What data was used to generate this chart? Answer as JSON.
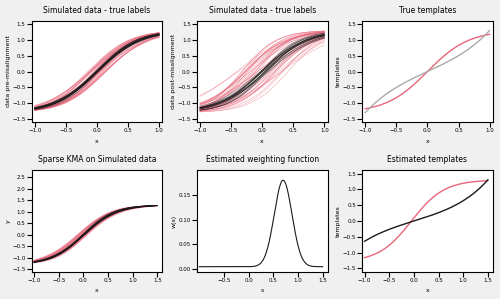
{
  "fig_width": 5.0,
  "fig_height": 2.99,
  "dpi": 100,
  "background_color": "#f0f0f0",
  "titles": [
    "Simulated data - true labels",
    "Simulated data - true labels",
    "True templates",
    "Sparse KMA on Simulated data",
    "Estimated weighting function",
    "Estimated templates"
  ],
  "xlabels": [
    "x",
    "x",
    "x",
    "x",
    "s",
    "x"
  ],
  "ylabels": [
    "data pre-misalignment",
    "data post-misalignment",
    "templates",
    "y",
    "w(s)",
    "templates"
  ],
  "color_pink": "#e8657a",
  "color_black": "#1a1a1a",
  "color_red": "#c0392b",
  "n_curves_pink": 40,
  "n_curves_black": 20,
  "title_fontsize": 5.5,
  "label_fontsize": 4.5,
  "tick_fontsize": 4.0,
  "line_alpha": 0.55,
  "line_width": 0.4
}
